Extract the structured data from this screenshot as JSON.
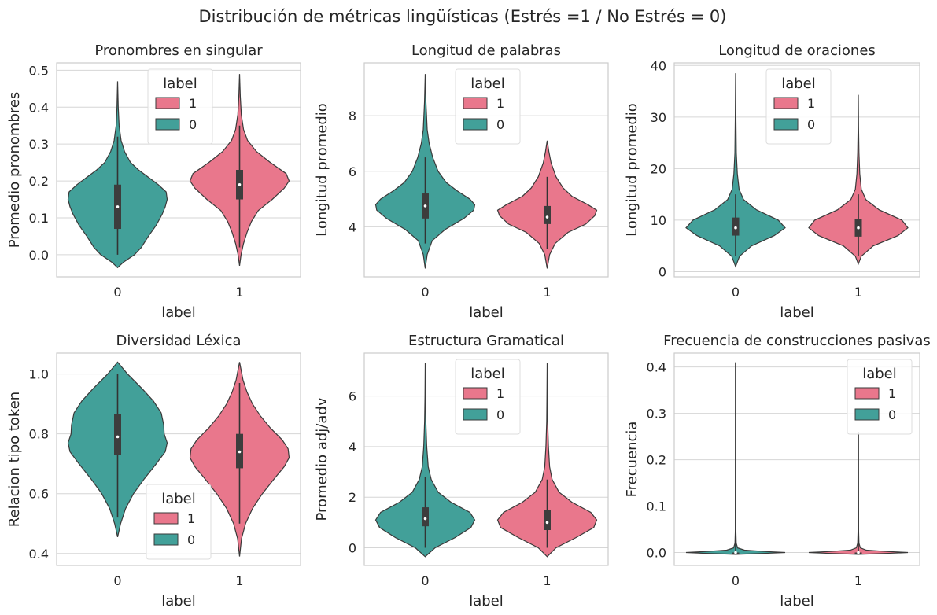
{
  "figure": {
    "title": "Distribución de métricas lingüísticas (Estrés =1 / No Estrés = 0)",
    "colors": {
      "label_0": "#42A099",
      "label_1": "#E9778C",
      "edge": "#3a3a3a",
      "grid": "#d6d6d6",
      "frame": "#cccccc"
    }
  },
  "chart_data": [
    {
      "type": "violin",
      "title": "Pronombres en singular",
      "xlabel": "label",
      "ylabel": "Promedio pronombres",
      "categories": [
        "0",
        "1"
      ],
      "ylim": [
        -0.06,
        0.52
      ],
      "yticks": [
        0.0,
        0.1,
        0.2,
        0.3,
        0.4,
        0.5
      ],
      "ytick_labels": [
        "0.0",
        "0.1",
        "0.2",
        "0.3",
        "0.4",
        "0.5"
      ],
      "grid": true,
      "legend": {
        "title": "label",
        "entries": [
          "1",
          "0"
        ],
        "placement": "top-center"
      },
      "violins": [
        {
          "category": "0",
          "min": -0.035,
          "max": 0.47,
          "median": 0.13,
          "q1": 0.07,
          "q3": 0.19,
          "wlo": 0.0,
          "whi": 0.32,
          "density": [
            [
              -0.035,
              0
            ],
            [
              -0.02,
              0.12
            ],
            [
              0.0,
              0.34
            ],
            [
              0.02,
              0.48
            ],
            [
              0.05,
              0.62
            ],
            [
              0.08,
              0.78
            ],
            [
              0.11,
              0.9
            ],
            [
              0.13,
              0.96
            ],
            [
              0.15,
              1.0
            ],
            [
              0.17,
              0.98
            ],
            [
              0.19,
              0.82
            ],
            [
              0.21,
              0.62
            ],
            [
              0.23,
              0.42
            ],
            [
              0.25,
              0.26
            ],
            [
              0.28,
              0.14
            ],
            [
              0.31,
              0.07
            ],
            [
              0.35,
              0.03
            ],
            [
              0.4,
              0.012
            ],
            [
              0.47,
              0
            ]
          ]
        },
        {
          "category": "1",
          "min": -0.03,
          "max": 0.49,
          "median": 0.19,
          "q1": 0.15,
          "q3": 0.23,
          "wlo": 0.02,
          "whi": 0.35,
          "density": [
            [
              -0.03,
              0
            ],
            [
              0.0,
              0.03
            ],
            [
              0.03,
              0.08
            ],
            [
              0.06,
              0.15
            ],
            [
              0.09,
              0.24
            ],
            [
              0.12,
              0.38
            ],
            [
              0.15,
              0.66
            ],
            [
              0.18,
              0.9
            ],
            [
              0.2,
              1.0
            ],
            [
              0.22,
              0.94
            ],
            [
              0.25,
              0.62
            ],
            [
              0.28,
              0.34
            ],
            [
              0.31,
              0.16
            ],
            [
              0.34,
              0.08
            ],
            [
              0.38,
              0.035
            ],
            [
              0.43,
              0.015
            ],
            [
              0.49,
              0
            ]
          ]
        }
      ]
    },
    {
      "type": "violin",
      "title": "Longitud de palabras",
      "xlabel": "label",
      "ylabel": "Longitud promedio",
      "categories": [
        "0",
        "1"
      ],
      "ylim": [
        2.2,
        9.9
      ],
      "yticks": [
        4,
        6,
        8
      ],
      "ytick_labels": [
        "4",
        "6",
        "8"
      ],
      "grid": true,
      "legend": {
        "title": "label",
        "entries": [
          "1",
          "0"
        ],
        "placement": "top-center"
      },
      "violins": [
        {
          "category": "0",
          "min": 2.5,
          "max": 9.5,
          "median": 4.75,
          "q1": 4.3,
          "q3": 5.2,
          "wlo": 3.4,
          "whi": 6.5,
          "density": [
            [
              2.5,
              0
            ],
            [
              3.0,
              0.04
            ],
            [
              3.5,
              0.14
            ],
            [
              3.9,
              0.4
            ],
            [
              4.3,
              0.78
            ],
            [
              4.6,
              0.98
            ],
            [
              4.8,
              1.0
            ],
            [
              5.0,
              0.9
            ],
            [
              5.3,
              0.64
            ],
            [
              5.6,
              0.42
            ],
            [
              6.0,
              0.26
            ],
            [
              6.5,
              0.15
            ],
            [
              7.0,
              0.08
            ],
            [
              7.5,
              0.04
            ],
            [
              8.5,
              0.015
            ],
            [
              9.5,
              0
            ]
          ]
        },
        {
          "category": "1",
          "min": 2.5,
          "max": 7.1,
          "median": 4.35,
          "q1": 4.1,
          "q3": 4.75,
          "wlo": 3.2,
          "whi": 5.8,
          "density": [
            [
              2.5,
              0
            ],
            [
              3.0,
              0.05
            ],
            [
              3.4,
              0.16
            ],
            [
              3.8,
              0.42
            ],
            [
              4.1,
              0.78
            ],
            [
              4.4,
              0.96
            ],
            [
              4.6,
              1.0
            ],
            [
              4.8,
              0.82
            ],
            [
              5.1,
              0.5
            ],
            [
              5.4,
              0.32
            ],
            [
              5.8,
              0.18
            ],
            [
              6.3,
              0.08
            ],
            [
              6.7,
              0.035
            ],
            [
              7.1,
              0
            ]
          ]
        }
      ]
    },
    {
      "type": "violin",
      "title": "Longitud de oraciones",
      "xlabel": "label",
      "ylabel": "Longitud promedio",
      "categories": [
        "0",
        "1"
      ],
      "ylim": [
        -1,
        40.5
      ],
      "yticks": [
        0,
        10,
        20,
        30,
        40
      ],
      "ytick_labels": [
        "0",
        "10",
        "20",
        "30",
        "40"
      ],
      "grid": true,
      "legend": {
        "title": "label",
        "entries": [
          "1",
          "0"
        ],
        "placement": "top-center"
      },
      "violins": [
        {
          "category": "0",
          "min": 1,
          "max": 38.5,
          "median": 8.5,
          "q1": 7,
          "q3": 10.5,
          "wlo": 3,
          "whi": 15,
          "density": [
            [
              1,
              0
            ],
            [
              3,
              0.08
            ],
            [
              5,
              0.32
            ],
            [
              7,
              0.78
            ],
            [
              8.5,
              1.0
            ],
            [
              10,
              0.86
            ],
            [
              12,
              0.42
            ],
            [
              14,
              0.16
            ],
            [
              16,
              0.07
            ],
            [
              19,
              0.035
            ],
            [
              23,
              0.015
            ],
            [
              30,
              0.006
            ],
            [
              38.5,
              0
            ]
          ]
        },
        {
          "category": "1",
          "min": 1.5,
          "max": 34.3,
          "median": 8.5,
          "q1": 6.8,
          "q3": 10.2,
          "wlo": 3,
          "whi": 15,
          "density": [
            [
              1.5,
              0
            ],
            [
              3,
              0.06
            ],
            [
              5,
              0.3
            ],
            [
              7,
              0.8
            ],
            [
              8.5,
              1.0
            ],
            [
              10,
              0.88
            ],
            [
              12,
              0.42
            ],
            [
              14,
              0.15
            ],
            [
              16,
              0.06
            ],
            [
              19,
              0.028
            ],
            [
              23,
              0.012
            ],
            [
              28,
              0.005
            ],
            [
              34.3,
              0
            ]
          ]
        }
      ]
    },
    {
      "type": "violin",
      "title": "Diversidad Léxica",
      "xlabel": "label",
      "ylabel": "Relacion tipo token",
      "categories": [
        "0",
        "1"
      ],
      "ylim": [
        0.36,
        1.07
      ],
      "yticks": [
        0.4,
        0.6,
        0.8,
        1.0
      ],
      "ytick_labels": [
        "0.4",
        "0.6",
        "0.8",
        "1.0"
      ],
      "grid": true,
      "legend": {
        "title": "label",
        "entries": [
          "1",
          "0"
        ],
        "placement": "bottom-center"
      },
      "violins": [
        {
          "category": "0",
          "min": 0.455,
          "max": 1.04,
          "median": 0.79,
          "q1": 0.73,
          "q3": 0.865,
          "wlo": 0.52,
          "whi": 1.0,
          "density": [
            [
              0.455,
              0
            ],
            [
              0.5,
              0.06
            ],
            [
              0.55,
              0.16
            ],
            [
              0.6,
              0.32
            ],
            [
              0.65,
              0.54
            ],
            [
              0.7,
              0.78
            ],
            [
              0.74,
              0.96
            ],
            [
              0.77,
              1.0
            ],
            [
              0.8,
              0.94
            ],
            [
              0.83,
              0.93
            ],
            [
              0.87,
              0.88
            ],
            [
              0.91,
              0.72
            ],
            [
              0.95,
              0.5
            ],
            [
              0.98,
              0.32
            ],
            [
              1.0,
              0.2
            ],
            [
              1.02,
              0.1
            ],
            [
              1.04,
              0
            ]
          ]
        },
        {
          "category": "1",
          "min": 0.39,
          "max": 1.04,
          "median": 0.74,
          "q1": 0.685,
          "q3": 0.8,
          "wlo": 0.5,
          "whi": 0.97,
          "density": [
            [
              0.39,
              0
            ],
            [
              0.45,
              0.04
            ],
            [
              0.5,
              0.12
            ],
            [
              0.55,
              0.26
            ],
            [
              0.6,
              0.46
            ],
            [
              0.65,
              0.7
            ],
            [
              0.69,
              0.9
            ],
            [
              0.72,
              1.0
            ],
            [
              0.75,
              0.98
            ],
            [
              0.78,
              0.86
            ],
            [
              0.82,
              0.62
            ],
            [
              0.86,
              0.42
            ],
            [
              0.9,
              0.26
            ],
            [
              0.94,
              0.15
            ],
            [
              0.98,
              0.07
            ],
            [
              1.04,
              0
            ]
          ]
        }
      ]
    },
    {
      "type": "violin",
      "title": "Estructura Gramatical",
      "xlabel": "label",
      "ylabel": "Promedio adj/adv",
      "categories": [
        "0",
        "1"
      ],
      "ylim": [
        -0.7,
        7.7
      ],
      "yticks": [
        0,
        2,
        4,
        6
      ],
      "ytick_labels": [
        "0",
        "2",
        "4",
        "6"
      ],
      "grid": true,
      "legend": {
        "title": "label",
        "entries": [
          "1",
          "0"
        ],
        "placement": "top-center"
      },
      "violins": [
        {
          "category": "0",
          "min": -0.35,
          "max": 7.3,
          "median": 1.15,
          "q1": 0.85,
          "q3": 1.6,
          "wlo": 0.0,
          "whi": 2.8,
          "density": [
            [
              -0.35,
              0
            ],
            [
              0,
              0.2
            ],
            [
              0.4,
              0.6
            ],
            [
              0.8,
              0.92
            ],
            [
              1.1,
              1.0
            ],
            [
              1.4,
              0.9
            ],
            [
              1.8,
              0.52
            ],
            [
              2.2,
              0.26
            ],
            [
              2.7,
              0.12
            ],
            [
              3.2,
              0.06
            ],
            [
              4,
              0.03
            ],
            [
              5,
              0.012
            ],
            [
              6,
              0.005
            ],
            [
              7.3,
              0
            ]
          ]
        },
        {
          "category": "1",
          "min": -0.35,
          "max": 7.3,
          "median": 1.0,
          "q1": 0.7,
          "q3": 1.5,
          "wlo": 0.0,
          "whi": 2.7,
          "density": [
            [
              -0.35,
              0
            ],
            [
              0,
              0.18
            ],
            [
              0.4,
              0.58
            ],
            [
              0.8,
              0.94
            ],
            [
              1.1,
              1.0
            ],
            [
              1.4,
              0.88
            ],
            [
              1.8,
              0.5
            ],
            [
              2.2,
              0.24
            ],
            [
              2.7,
              0.1
            ],
            [
              3.2,
              0.05
            ],
            [
              4,
              0.025
            ],
            [
              5,
              0.01
            ],
            [
              6,
              0.004
            ],
            [
              7.3,
              0
            ]
          ]
        }
      ]
    },
    {
      "type": "violin",
      "title": "Frecuencia de construcciones pasivas",
      "xlabel": "label",
      "ylabel": "Frecuencia",
      "categories": [
        "0",
        "1"
      ],
      "ylim": [
        -0.028,
        0.43
      ],
      "yticks": [
        0.0,
        0.1,
        0.2,
        0.3,
        0.4
      ],
      "ytick_labels": [
        "0.0",
        "0.1",
        "0.2",
        "0.3",
        "0.4"
      ],
      "grid": true,
      "legend": {
        "title": "label",
        "entries": [
          "1",
          "0"
        ],
        "placement": "top-right"
      },
      "violins": [
        {
          "category": "0",
          "min": -0.004,
          "max": 0.41,
          "median": 0.0,
          "q1": 0.0,
          "q3": 0.0,
          "wlo": 0.0,
          "whi": 0.41,
          "density": [
            [
              -0.004,
              0
            ],
            [
              -0.002,
              0.55
            ],
            [
              0,
              1.0
            ],
            [
              0.002,
              0.62
            ],
            [
              0.005,
              0.18
            ],
            [
              0.01,
              0.04
            ],
            [
              0.02,
              0.012
            ],
            [
              0.05,
              0.004
            ],
            [
              0.41,
              0
            ]
          ]
        },
        {
          "category": "1",
          "min": -0.004,
          "max": 0.26,
          "median": 0.0,
          "q1": 0.0,
          "q3": 0.0,
          "wlo": 0.0,
          "whi": 0.26,
          "density": [
            [
              -0.004,
              0
            ],
            [
              -0.002,
              0.55
            ],
            [
              0,
              1.0
            ],
            [
              0.002,
              0.6
            ],
            [
              0.005,
              0.16
            ],
            [
              0.01,
              0.04
            ],
            [
              0.02,
              0.012
            ],
            [
              0.05,
              0.004
            ],
            [
              0.26,
              0
            ]
          ]
        }
      ]
    }
  ]
}
